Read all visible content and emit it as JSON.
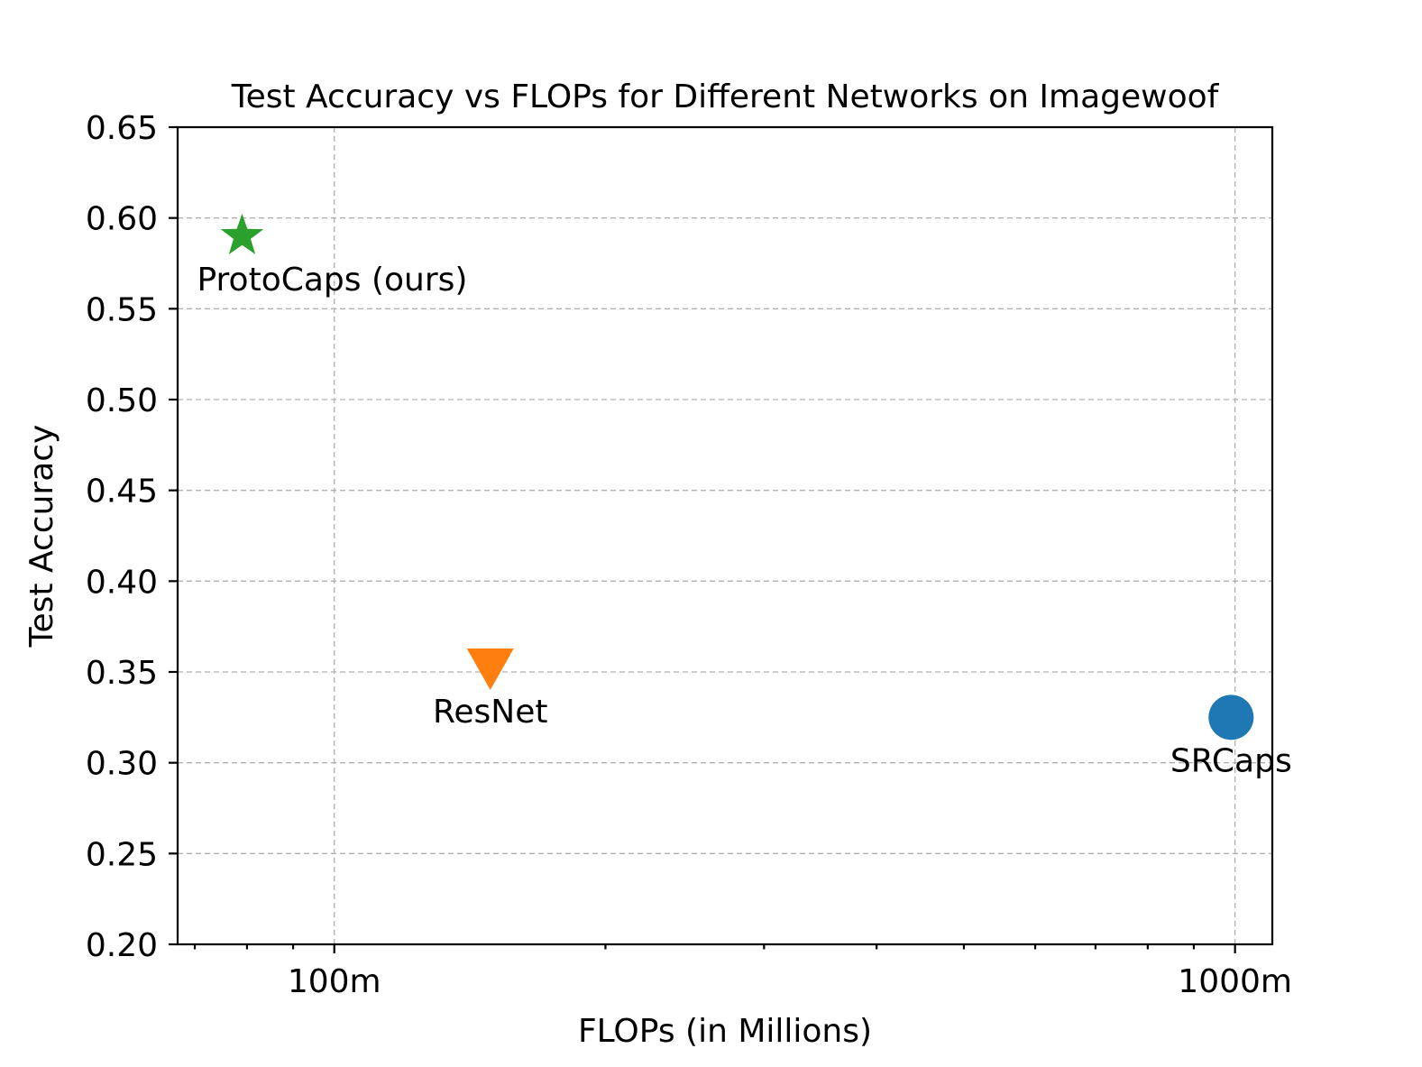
{
  "chart_data": {
    "type": "scatter",
    "title": "Test Accuracy vs FLOPs for Different Networks on Imagewoof",
    "xlabel": "FLOPs (in Millions)",
    "ylabel": "Test Accuracy",
    "xscale": "log",
    "xlim": [
      67,
      1100
    ],
    "ylim": [
      0.2,
      0.65
    ],
    "x_ticks": [
      {
        "value": 100,
        "label": "100m"
      },
      {
        "value": 1000,
        "label": "1000m"
      }
    ],
    "y_ticks": [
      {
        "value": 0.2,
        "label": "0.20"
      },
      {
        "value": 0.25,
        "label": "0.25"
      },
      {
        "value": 0.3,
        "label": "0.30"
      },
      {
        "value": 0.35,
        "label": "0.35"
      },
      {
        "value": 0.4,
        "label": "0.40"
      },
      {
        "value": 0.45,
        "label": "0.45"
      },
      {
        "value": 0.5,
        "label": "0.50"
      },
      {
        "value": 0.55,
        "label": "0.55"
      },
      {
        "value": 0.6,
        "label": "0.60"
      },
      {
        "value": 0.65,
        "label": "0.65"
      }
    ],
    "grid": true,
    "points": [
      {
        "name": "ProtoCaps (ours)",
        "x": 79,
        "y": 0.59,
        "marker": "star",
        "color": "#2ca02c"
      },
      {
        "name": "ResNet",
        "x": 149,
        "y": 0.352,
        "marker": "triangle-down",
        "color": "#ff7f0e"
      },
      {
        "name": "SRCaps",
        "x": 990,
        "y": 0.325,
        "marker": "circle",
        "color": "#1f77b4"
      }
    ]
  }
}
